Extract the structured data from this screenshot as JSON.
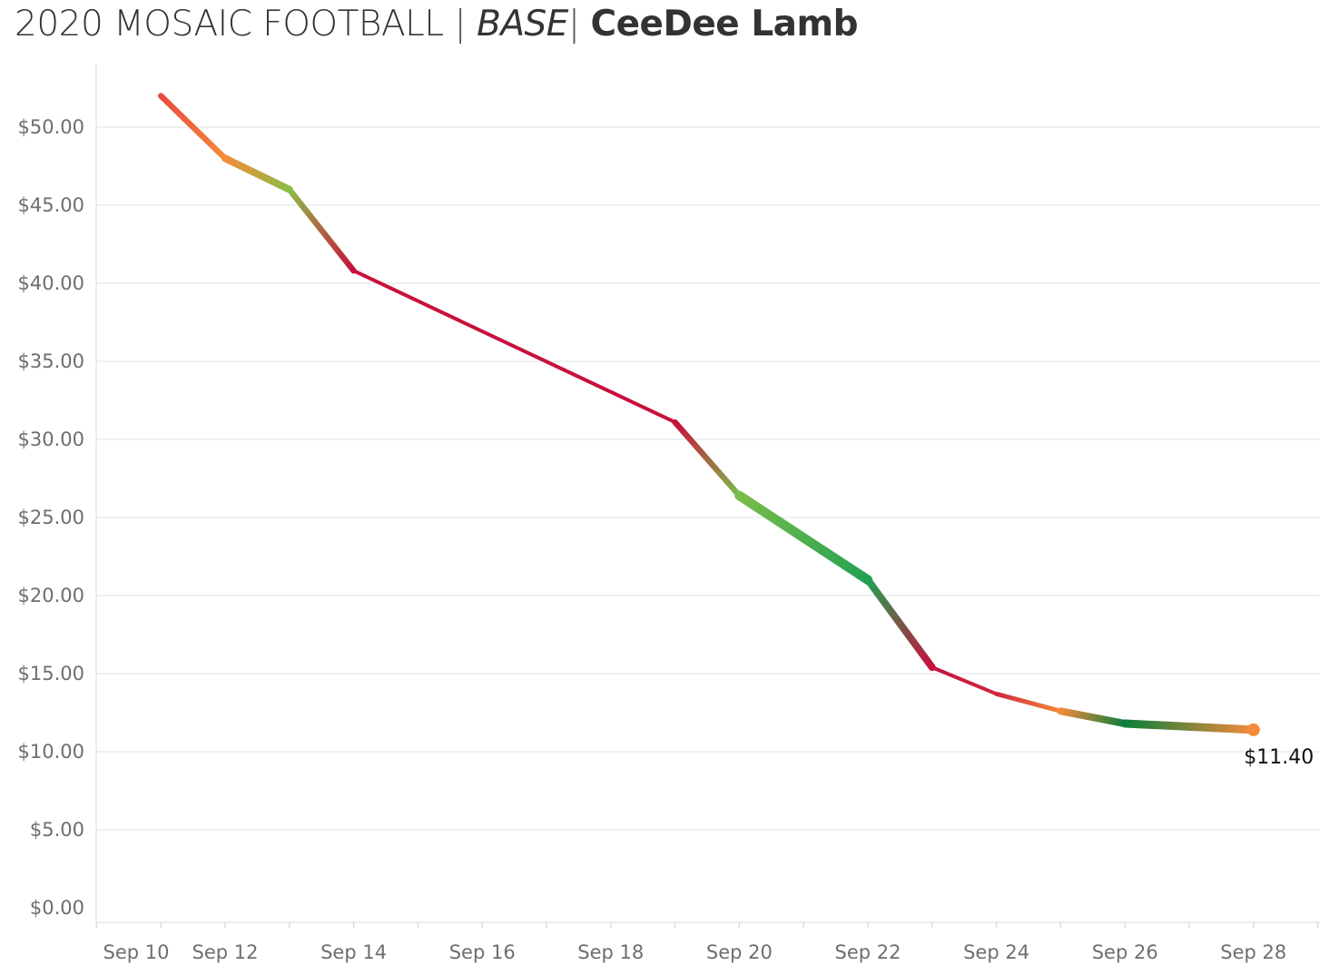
{
  "title": {
    "part1": "2020 MOSAIC FOOTBALL",
    "separator": "|",
    "part2": "BASE",
    "part3": "CeeDee Lamb"
  },
  "chart_data": {
    "type": "line",
    "x_dates": [
      "Sep 11",
      "Sep 12",
      "Sep 13",
      "Sep 14",
      "Sep 19",
      "Sep 20",
      "Sep 22",
      "Sep 23",
      "Sep 24",
      "Sep 25",
      "Sep 26",
      "Sep 28"
    ],
    "values": [
      52.0,
      48.0,
      46.0,
      40.8,
      31.1,
      26.4,
      21.0,
      15.4,
      13.7,
      12.6,
      11.8,
      11.4
    ],
    "segment_colors": [
      "#f4623a",
      "#f58a3a",
      "#8cbd46",
      "#c62a40",
      "#c8103c",
      "#a86a3c",
      "#6abf4b",
      "#23a052",
      "#c8103c",
      "#e8563a",
      "#f58a3a",
      "#0a7f3a"
    ],
    "point_colors": [
      "#e94a3f",
      "#f58a3a",
      "#8cbd46",
      "#c8103c",
      "#c8103c",
      "#7bbd4a",
      "#23a052",
      "#c8103c",
      "#d0283f",
      "#f58a3a",
      "#0a7f3a",
      "#f58a3a"
    ],
    "end_label": "$11.40",
    "x_ticks": [
      "Sep 10",
      "Sep 12",
      "Sep 14",
      "Sep 16",
      "Sep 18",
      "Sep 20",
      "Sep 22",
      "Sep 24",
      "Sep 26",
      "Sep 28"
    ],
    "y_ticks": [
      "$0.00",
      "$5.00",
      "$10.00",
      "$15.00",
      "$20.00",
      "$25.00",
      "$30.00",
      "$35.00",
      "$40.00",
      "$45.00",
      "$50.00"
    ],
    "ylim": [
      0,
      55
    ],
    "xlim": [
      "Sep 10",
      "Sep 29"
    ],
    "grid": true,
    "legend": "none"
  }
}
